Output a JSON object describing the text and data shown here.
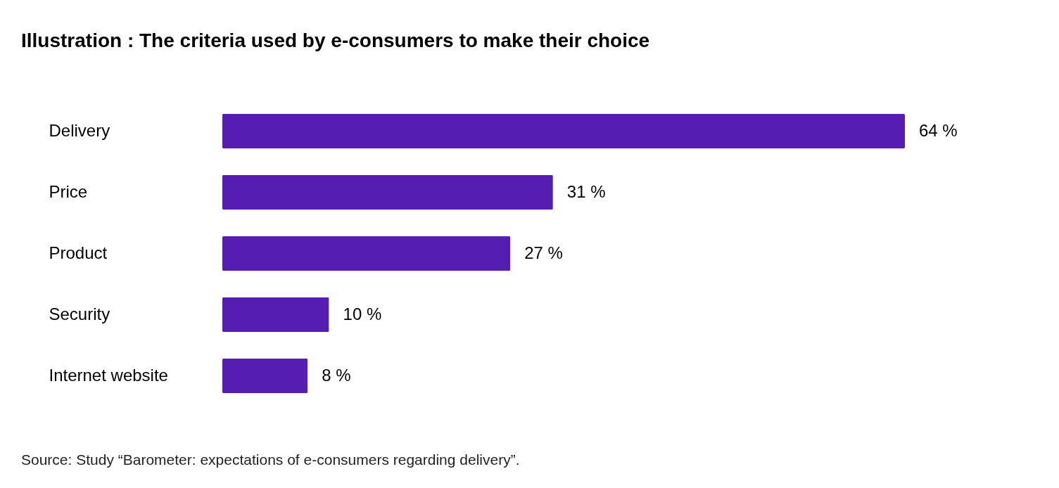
{
  "chart_data": {
    "type": "bar",
    "orientation": "horizontal",
    "title": "Illustration : The criteria used by e-consumers to make their choice",
    "categories": [
      "Delivery",
      "Price",
      "Product",
      "Security",
      "Internet website"
    ],
    "values": [
      64,
      31,
      27,
      10,
      8
    ],
    "value_labels": [
      "64 %",
      "31 %",
      "27 %",
      "10 %",
      "8 %"
    ],
    "color": "#561db2",
    "annotations": [
      "Source: Study “Barometer: expectations of e-consumers regarding delivery”."
    ],
    "stacked": false
  }
}
